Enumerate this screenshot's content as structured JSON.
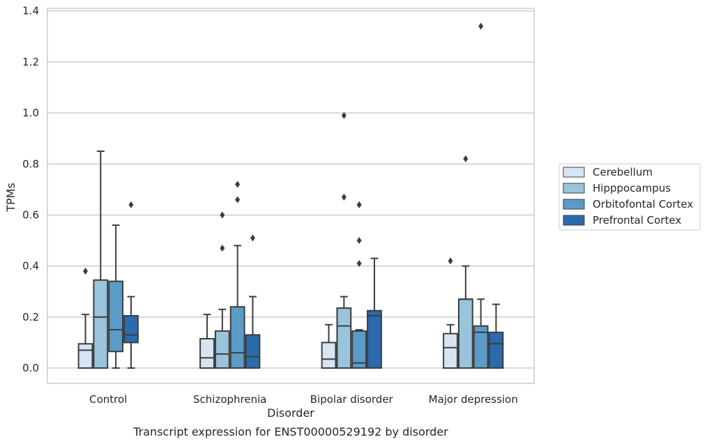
{
  "chart_data": {
    "type": "box",
    "xlabel": "Disorder",
    "ylabel": "TPMs",
    "caption": "Transcript expression for ENST00000529192 by disorder",
    "ylim": [
      -0.06,
      1.41
    ],
    "yticks": [
      "0.0",
      "0.2",
      "0.4",
      "0.6",
      "0.8",
      "1.0",
      "1.2",
      "1.4"
    ],
    "grid": "horizontal",
    "legend_position": "right",
    "categories": [
      "Control",
      "Schizophrenia",
      "Bipolar disorder",
      "Major depression"
    ],
    "series": [
      {
        "name": "Cerebellum",
        "color": "#d6e5f4",
        "boxes": [
          {
            "min": 0.0,
            "q1": 0.0,
            "median": 0.07,
            "q3": 0.095,
            "max": 0.21,
            "outliers": [
              0.38
            ]
          },
          {
            "min": 0.0,
            "q1": 0.0,
            "median": 0.04,
            "q3": 0.115,
            "max": 0.21,
            "outliers": []
          },
          {
            "min": 0.0,
            "q1": 0.0,
            "median": 0.035,
            "q3": 0.1,
            "max": 0.17,
            "outliers": []
          },
          {
            "min": 0.0,
            "q1": 0.0,
            "median": 0.08,
            "q3": 0.135,
            "max": 0.17,
            "outliers": [
              0.42
            ]
          }
        ]
      },
      {
        "name": "Hipppocampus",
        "color": "#9ac3dc",
        "boxes": [
          {
            "min": 0.0,
            "q1": 0.0,
            "median": 0.2,
            "q3": 0.345,
            "max": 0.85,
            "outliers": []
          },
          {
            "min": 0.0,
            "q1": 0.0,
            "median": 0.055,
            "q3": 0.145,
            "max": 0.23,
            "outliers": [
              0.47,
              0.6
            ]
          },
          {
            "min": 0.0,
            "q1": 0.0,
            "median": 0.165,
            "q3": 0.235,
            "max": 0.28,
            "outliers": [
              0.67,
              0.99
            ]
          },
          {
            "min": 0.0,
            "q1": 0.0,
            "median": 0.27,
            "q3": 0.27,
            "max": 0.4,
            "outliers": [
              0.82
            ]
          }
        ]
      },
      {
        "name": "Orbitofontal Cortex",
        "color": "#5a9bc8",
        "boxes": [
          {
            "min": 0.0,
            "q1": 0.065,
            "median": 0.15,
            "q3": 0.34,
            "max": 0.56,
            "outliers": []
          },
          {
            "min": 0.0,
            "q1": 0.0,
            "median": 0.06,
            "q3": 0.24,
            "max": 0.48,
            "outliers": [
              0.66,
              0.72
            ]
          },
          {
            "min": 0.0,
            "q1": 0.0,
            "median": 0.02,
            "q3": 0.145,
            "max": 0.15,
            "outliers": [
              0.41,
              0.5,
              0.64
            ]
          },
          {
            "min": 0.0,
            "q1": 0.0,
            "median": 0.14,
            "q3": 0.165,
            "max": 0.27,
            "outliers": [
              1.34
            ]
          }
        ]
      },
      {
        "name": "Prefrontal Cortex",
        "color": "#2a6aad",
        "boxes": [
          {
            "min": 0.0,
            "q1": 0.1,
            "median": 0.13,
            "q3": 0.205,
            "max": 0.28,
            "outliers": [
              0.64
            ]
          },
          {
            "min": 0.0,
            "q1": 0.0,
            "median": 0.045,
            "q3": 0.13,
            "max": 0.28,
            "outliers": [
              0.51
            ]
          },
          {
            "min": 0.0,
            "q1": 0.0,
            "median": 0.205,
            "q3": 0.225,
            "max": 0.43,
            "outliers": []
          },
          {
            "min": 0.0,
            "q1": 0.0,
            "median": 0.095,
            "q3": 0.14,
            "max": 0.25,
            "outliers": []
          }
        ]
      }
    ]
  }
}
